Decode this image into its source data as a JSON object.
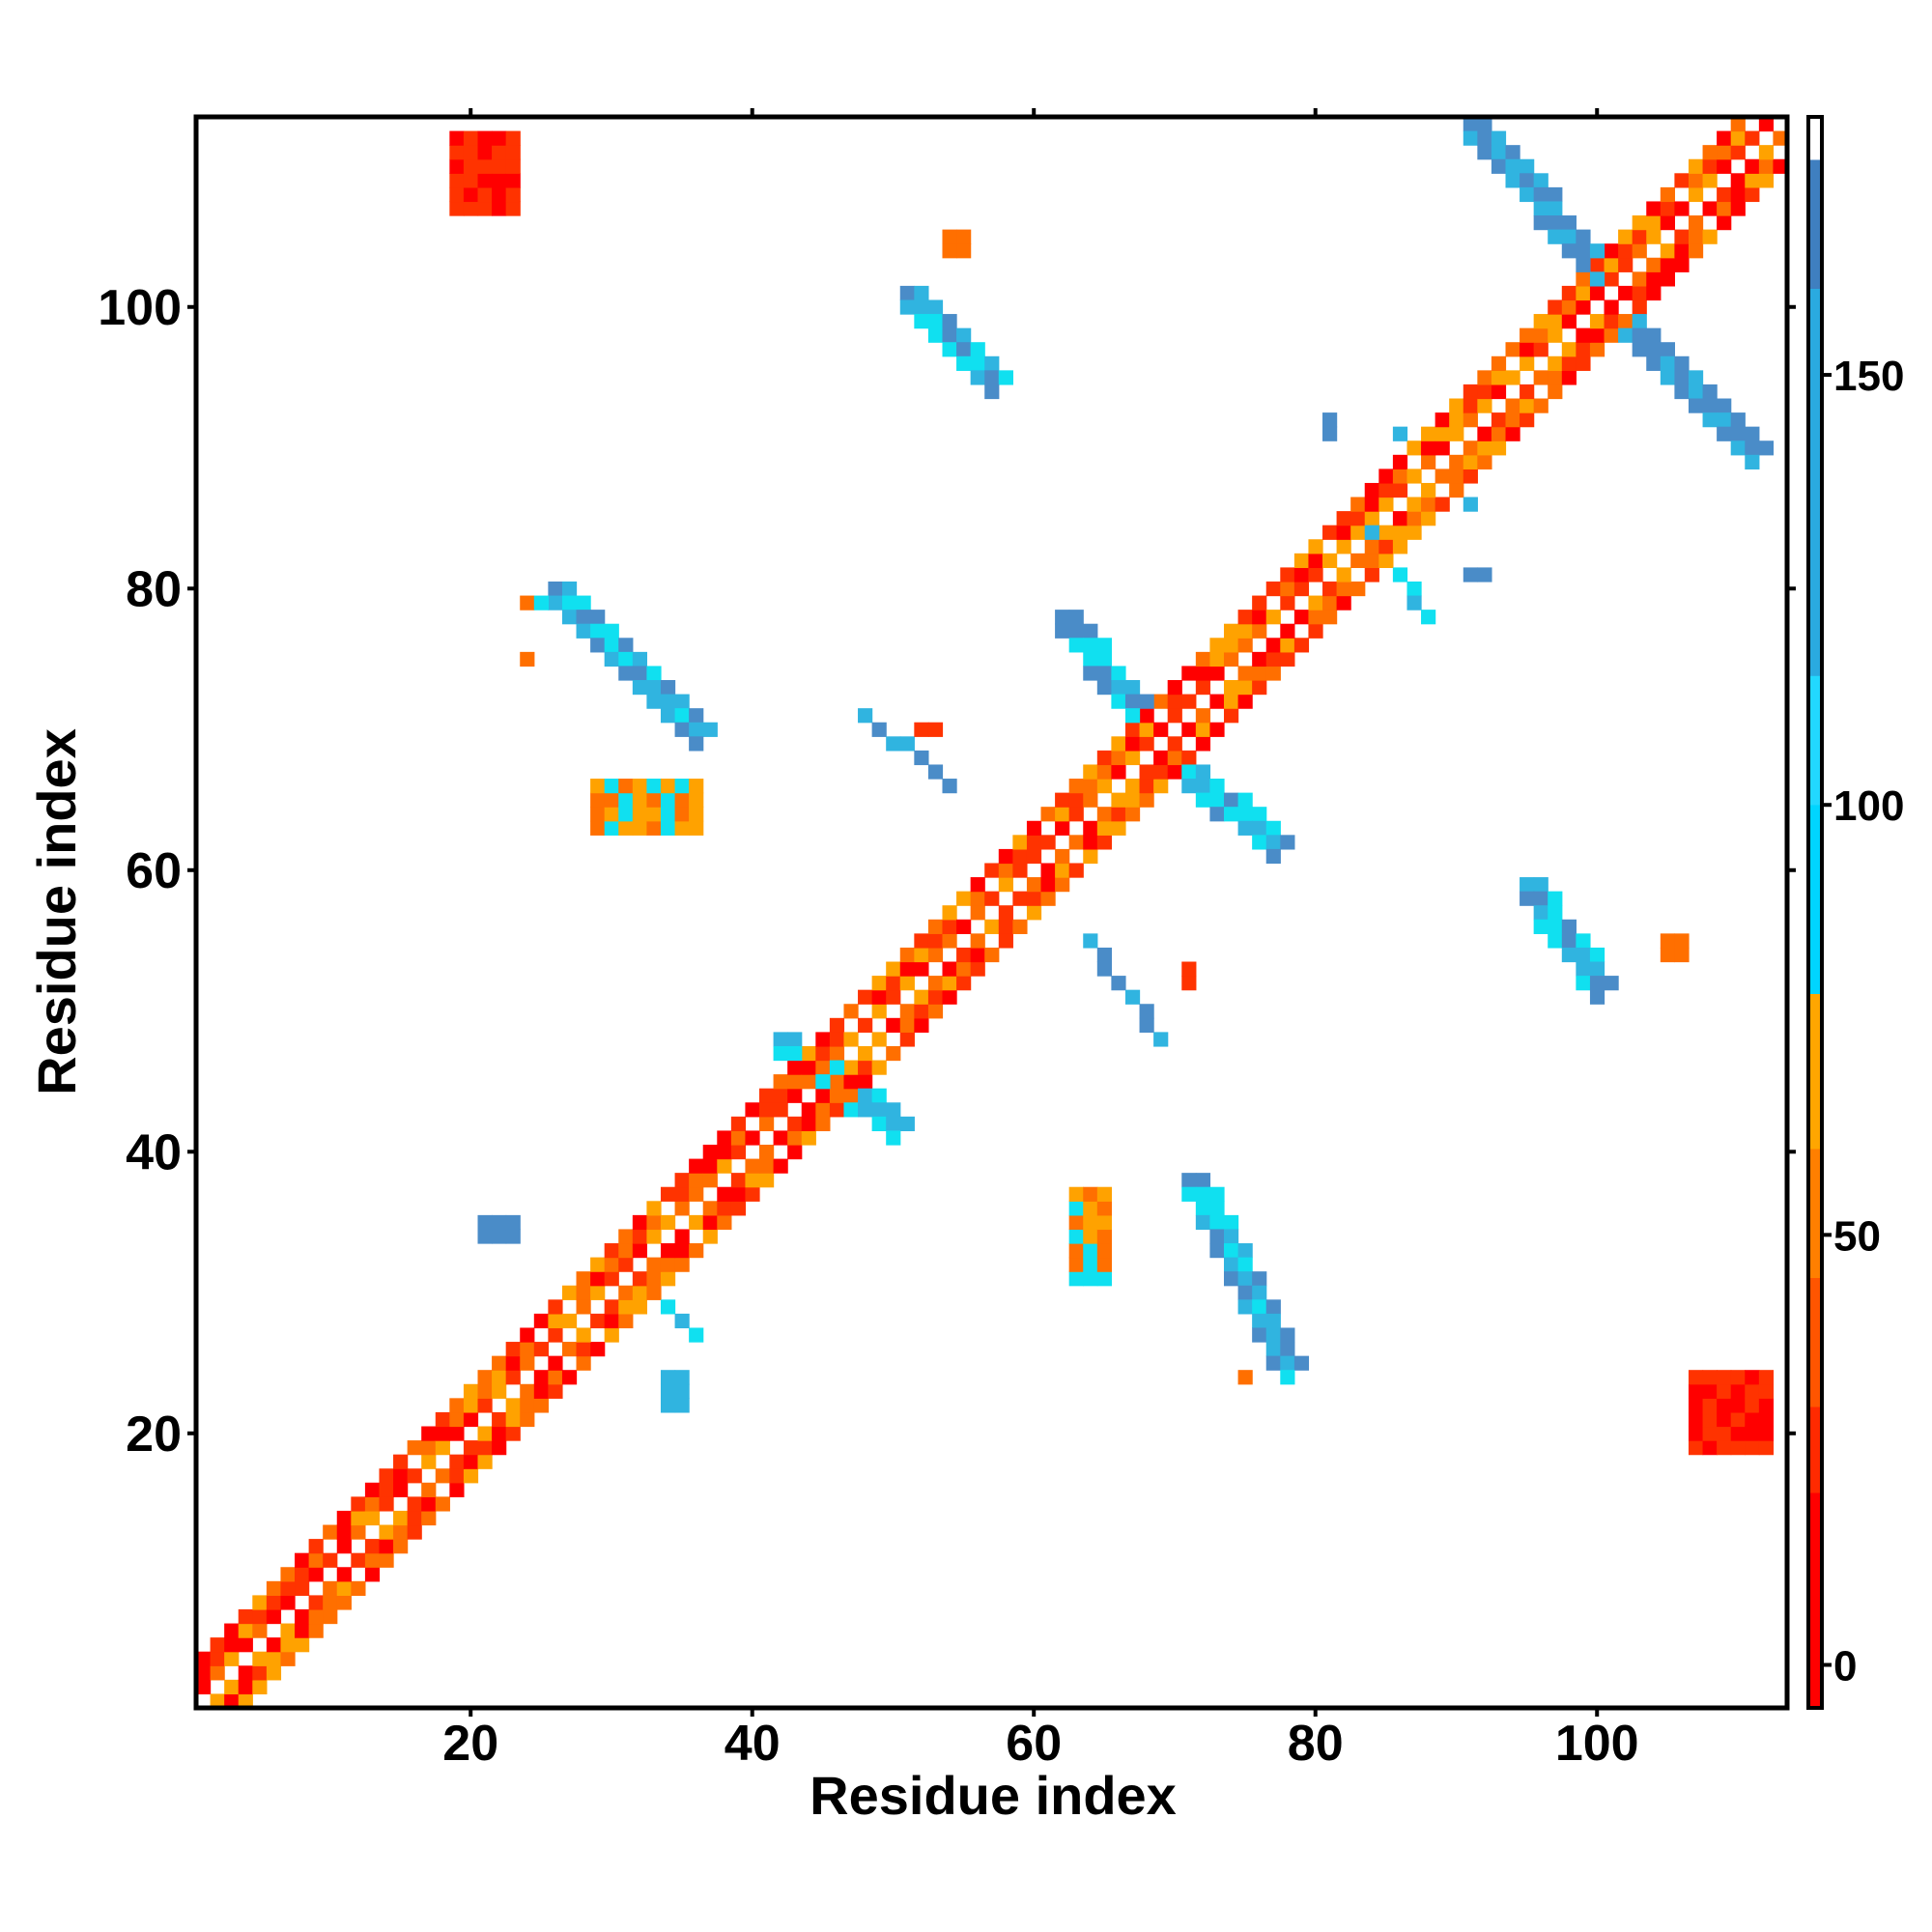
{
  "chart_data": {
    "type": "heatmap",
    "xlabel": "Residue index",
    "ylabel": "Residue index",
    "xlim": [
      0.5,
      113.5
    ],
    "ylim": [
      0.5,
      113.5
    ],
    "x_ticks": [
      20,
      40,
      60,
      80,
      100
    ],
    "y_ticks": [
      20,
      40,
      60,
      80,
      100
    ],
    "colorbar": {
      "range": [
        -5,
        180
      ],
      "ticks": [
        0,
        50,
        100,
        150
      ],
      "stops": [
        {
          "value": -5,
          "color": "#ff0000"
        },
        {
          "value": 20,
          "color": "#ff2a00"
        },
        {
          "value": 30,
          "color": "#ff5500"
        },
        {
          "value": 45,
          "color": "#ff7f00"
        },
        {
          "value": 60,
          "color": "#ffa600"
        },
        {
          "value": 78,
          "color": "#00d5ff"
        },
        {
          "value": 100,
          "color": "#22d8ff"
        },
        {
          "value": 115,
          "color": "#2aaae0"
        },
        {
          "value": 160,
          "color": "#3f7fc0"
        },
        {
          "value": 175,
          "color": "#ffffff"
        }
      ]
    },
    "colors": {
      "diag_red": "#ff0000",
      "red_orange": "#ff3300",
      "orange": "#ff6f00",
      "light_orange": "#ffa200",
      "cyan": "#10e0f0",
      "light_blue": "#30b4e0",
      "steel_blue": "#4a8cc8"
    },
    "regions": [
      {
        "kind": "band",
        "from": 1,
        "to": 113,
        "offsets": [
          1,
          2,
          3
        ],
        "palette": [
          "diag_red",
          "red_orange",
          "orange",
          "light_orange"
        ]
      },
      {
        "kind": "strip",
        "xs": [
          26,
          36
        ],
        "ys": [
          80,
          70
        ],
        "width": 2,
        "palette": [
          "steel_blue",
          "light_blue",
          "cyan"
        ]
      },
      {
        "kind": "strip",
        "xs": [
          71,
          78
        ],
        "ys": [
          38,
          25
        ],
        "width": 2,
        "palette": [
          "light_blue",
          "steel_blue",
          "cyan"
        ]
      },
      {
        "kind": "strip",
        "xs": [
          51,
          57
        ],
        "ys": [
          101,
          95
        ],
        "width": 2,
        "palette": [
          "cyan",
          "light_blue",
          "steel_blue"
        ]
      },
      {
        "kind": "strip",
        "xs": [
          95,
          100
        ],
        "ys": [
          59,
          52
        ],
        "width": 2,
        "palette": [
          "cyan",
          "light_blue",
          "steel_blue"
        ]
      },
      {
        "kind": "strip",
        "xs": [
          91,
          100
        ],
        "ys": [
          113,
          103
        ],
        "width": 2,
        "palette": [
          "light_blue",
          "steel_blue"
        ]
      },
      {
        "kind": "strip",
        "xs": [
          102,
          111
        ],
        "ys": [
          99,
          90
        ],
        "width": 2,
        "palette": [
          "steel_blue",
          "light_blue"
        ]
      },
      {
        "kind": "strip",
        "xs": [
          62,
          68
        ],
        "ys": [
          78,
          70
        ],
        "width": 2,
        "palette": [
          "light_blue",
          "steel_blue",
          "cyan"
        ]
      },
      {
        "kind": "strip",
        "xs": [
          70,
          77
        ],
        "ys": [
          68,
          62
        ],
        "width": 2,
        "palette": [
          "steel_blue",
          "light_blue",
          "cyan"
        ]
      },
      {
        "kind": "strip",
        "xs": [
          48,
          54
        ],
        "ys": [
          71,
          66
        ],
        "width": 1,
        "palette": [
          "cyan",
          "light_blue",
          "steel_blue"
        ]
      },
      {
        "kind": "strip",
        "xs": [
          64,
          69
        ],
        "ys": [
          55,
          48
        ],
        "width": 1,
        "palette": [
          "steel_blue",
          "light_blue",
          "cyan"
        ]
      },
      {
        "kind": "strip",
        "xs": [
          42,
          50
        ],
        "ys": [
          48,
          42
        ],
        "width": 2,
        "palette": [
          "cyan",
          "light_blue"
        ]
      },
      {
        "kind": "strip",
        "xs": [
          30,
          36
        ],
        "ys": [
          33,
          27
        ],
        "width": 1,
        "palette": [
          "cyan",
          "light_blue"
        ]
      },
      {
        "kind": "strip",
        "xs": [
          83,
          88
        ],
        "ys": [
          85,
          78
        ],
        "width": 1,
        "palette": [
          "cyan",
          "light_blue"
        ]
      },
      {
        "kind": "strip",
        "xs": [
          86,
          91
        ],
        "ys": [
          91,
          86
        ],
        "width": 1,
        "palette": [
          "cyan",
          "light_blue"
        ]
      },
      {
        "kind": "block",
        "x": [
          19,
          23
        ],
        "y": [
          107,
          112
        ],
        "palette": [
          "diag_red",
          "red_orange"
        ]
      },
      {
        "kind": "block",
        "x": [
          107,
          112
        ],
        "y": [
          19,
          24
        ],
        "palette": [
          "diag_red",
          "red_orange"
        ]
      },
      {
        "kind": "block",
        "x": [
          21,
          23
        ],
        "y": [
          34,
          35
        ],
        "palette": [
          "steel_blue"
        ]
      },
      {
        "kind": "block",
        "x": [
          34,
          35
        ],
        "y": [
          22,
          24
        ],
        "palette": [
          "light_blue"
        ]
      },
      {
        "kind": "block",
        "x": [
          29,
          36
        ],
        "y": [
          63,
          66
        ],
        "palette": [
          "orange",
          "light_orange",
          "cyan"
        ]
      },
      {
        "kind": "block",
        "x": [
          63,
          65
        ],
        "y": [
          31,
          37
        ],
        "palette": [
          "orange",
          "light_orange",
          "cyan"
        ]
      },
      {
        "kind": "block",
        "x": [
          54,
          55
        ],
        "y": [
          104,
          105
        ],
        "palette": [
          "orange"
        ]
      },
      {
        "kind": "block",
        "x": [
          105,
          106
        ],
        "y": [
          54,
          55
        ],
        "palette": [
          "orange"
        ]
      },
      {
        "kind": "block",
        "x": [
          52,
          53
        ],
        "y": [
          70,
          70
        ],
        "palette": [
          "red_orange"
        ]
      },
      {
        "kind": "block",
        "x": [
          71,
          71
        ],
        "y": [
          52,
          53
        ],
        "palette": [
          "red_orange"
        ]
      },
      {
        "kind": "block",
        "x": [
          91,
          92
        ],
        "y": [
          81,
          81
        ],
        "palette": [
          "steel_blue"
        ]
      },
      {
        "kind": "block",
        "x": [
          81,
          81
        ],
        "y": [
          91,
          92
        ],
        "palette": [
          "steel_blue"
        ]
      },
      {
        "kind": "block",
        "x": [
          24,
          25
        ],
        "y": [
          79,
          79
        ],
        "palette": [
          "orange",
          "cyan"
        ]
      },
      {
        "kind": "block",
        "x": [
          24,
          24
        ],
        "y": [
          75,
          75
        ],
        "palette": [
          "orange"
        ]
      },
      {
        "kind": "block",
        "x": [
          75,
          75
        ],
        "y": [
          24,
          24
        ],
        "palette": [
          "orange"
        ]
      }
    ]
  }
}
